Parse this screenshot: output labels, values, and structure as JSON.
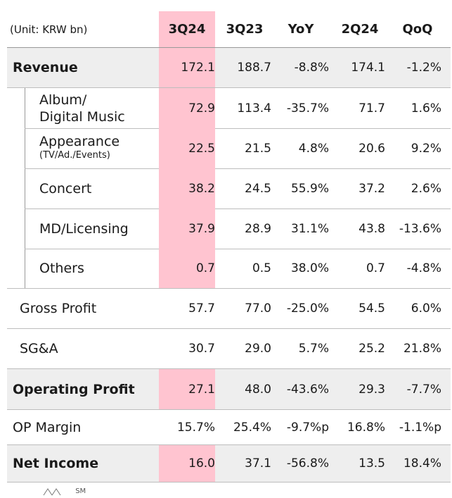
{
  "header": {
    "unit": "(Unit: KRW bn)",
    "columns": [
      "3Q24",
      "3Q23",
      "YoY",
      "2Q24",
      "QoQ"
    ]
  },
  "rows": [
    {
      "label": "Revenue",
      "values": [
        "172.1",
        "188.7",
        "-8.8%",
        "174.1",
        "-1.2%"
      ]
    },
    {
      "label": "Album/",
      "label2": "Digital Music",
      "values": [
        "72.9",
        "113.4",
        "-35.7%",
        "71.7",
        "1.6%"
      ]
    },
    {
      "label": "Appearance",
      "label2": "(TV/Ad./Events)",
      "values": [
        "22.5",
        "21.5",
        "4.8%",
        "20.6",
        "9.2%"
      ]
    },
    {
      "label": "Concert",
      "values": [
        "38.2",
        "24.5",
        "55.9%",
        "37.2",
        "2.6%"
      ]
    },
    {
      "label": "MD/Licensing",
      "values": [
        "37.9",
        "28.9",
        "31.1%",
        "43.8",
        "-13.6%"
      ]
    },
    {
      "label": "Others",
      "values": [
        "0.7",
        "0.5",
        "38.0%",
        "0.7",
        "-4.8%"
      ]
    },
    {
      "label": "Gross Profit",
      "values": [
        "57.7",
        "77.0",
        "-25.0%",
        "54.5",
        "6.0%"
      ]
    },
    {
      "label": "SG&A",
      "values": [
        "30.7",
        "29.0",
        "5.7%",
        "25.2",
        "21.8%"
      ]
    },
    {
      "label": "Operating Profit",
      "values": [
        "27.1",
        "48.0",
        "-43.6%",
        "29.3",
        "-7.7%"
      ]
    },
    {
      "label": "OP Margin",
      "values": [
        "15.7%",
        "25.4%",
        "-9.7%p",
        "16.8%",
        "-1.1%p"
      ]
    },
    {
      "label": "Net Income",
      "values": [
        "16.0",
        "37.1",
        "-56.8%",
        "13.5",
        "18.4%"
      ]
    }
  ],
  "footer": {
    "logo_text": "SM"
  }
}
